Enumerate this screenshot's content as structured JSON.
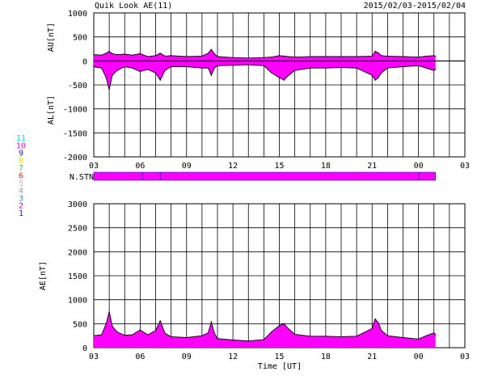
{
  "header": {
    "title": "Quik Look AE(11)",
    "date_range": "2015/02/03-2015/02/04"
  },
  "colors": {
    "fill": "#ff00ff",
    "line": "#000000",
    "grid": "#000000",
    "station_bar": "#ff00ff",
    "station_ticks": "#1a1aa0"
  },
  "station_legend": [
    {
      "label": "11",
      "color": "#00e5e5"
    },
    {
      "label": "10",
      "color": "#ff00ff"
    },
    {
      "label": "9",
      "color": "#2020c0"
    },
    {
      "label": "8",
      "color": "#f0e000"
    },
    {
      "label": "7",
      "color": "#40c040"
    },
    {
      "label": "6",
      "color": "#ff2020"
    },
    {
      "label": "5",
      "color": "#c0c0c0"
    },
    {
      "label": "4",
      "color": "#a0a0a0"
    },
    {
      "label": "3",
      "color": "#20a0a0"
    },
    {
      "label": "2",
      "color": "#c000c0"
    },
    {
      "label": "1",
      "color": "#2020c0"
    }
  ],
  "station_panel": {
    "label": "N.STN",
    "coverage_end_hour": 25.1,
    "tick_hours": [
      6.15,
      7.3,
      24.05
    ]
  },
  "x_tick_labels": [
    "03",
    "06",
    "09",
    "12",
    "15",
    "18",
    "21",
    "00",
    "03"
  ],
  "x_axis_label": "Time [UT]",
  "chart_data": [
    {
      "type": "area",
      "name": "AU/AL panel",
      "ylabel_upper": "AU[nT]",
      "ylabel_lower": "AL[nT]",
      "ylim": [
        -2000,
        1000
      ],
      "yticks": [
        1000,
        500,
        0,
        -500,
        -1000,
        -1500,
        -2000
      ],
      "xlim_hours": [
        3,
        27
      ],
      "grid": true,
      "series": [
        {
          "key": "AU",
          "x_hours": [
            3.0,
            3.5,
            3.8,
            4.0,
            4.2,
            4.5,
            5.0,
            5.5,
            6.0,
            6.5,
            7.0,
            7.3,
            7.6,
            8.0,
            9.0,
            10.0,
            10.4,
            10.6,
            10.8,
            11.0,
            12.0,
            13.0,
            14.0,
            14.5,
            15.0,
            15.3,
            15.6,
            16.0,
            17.0,
            18.0,
            19.0,
            20.0,
            21.0,
            21.2,
            21.4,
            21.6,
            22.0,
            23.0,
            24.0,
            24.5,
            25.0,
            25.1
          ],
          "values": [
            130,
            120,
            160,
            200,
            150,
            130,
            140,
            120,
            150,
            90,
            110,
            160,
            100,
            110,
            90,
            100,
            160,
            240,
            150,
            90,
            70,
            60,
            70,
            80,
            110,
            100,
            90,
            80,
            90,
            90,
            90,
            90,
            100,
            200,
            170,
            110,
            100,
            90,
            80,
            100,
            110,
            100
          ]
        },
        {
          "key": "AL",
          "x_hours": [
            3.0,
            3.5,
            3.8,
            4.0,
            4.2,
            4.5,
            5.0,
            5.5,
            6.0,
            6.5,
            7.0,
            7.3,
            7.6,
            8.0,
            9.0,
            10.0,
            10.4,
            10.6,
            10.8,
            11.0,
            12.0,
            13.0,
            14.0,
            14.5,
            15.0,
            15.3,
            15.6,
            16.0,
            17.0,
            18.0,
            19.0,
            20.0,
            21.0,
            21.2,
            21.4,
            21.6,
            22.0,
            23.0,
            24.0,
            24.5,
            25.0,
            25.1
          ],
          "values": [
            -120,
            -150,
            -350,
            -600,
            -300,
            -200,
            -120,
            -150,
            -220,
            -180,
            -250,
            -400,
            -200,
            -120,
            -120,
            -150,
            -150,
            -300,
            -150,
            -100,
            -90,
            -80,
            -100,
            -250,
            -350,
            -400,
            -300,
            -200,
            -150,
            -150,
            -140,
            -150,
            -300,
            -400,
            -350,
            -250,
            -150,
            -120,
            -100,
            -150,
            -200,
            -170
          ]
        }
      ]
    },
    {
      "type": "area",
      "name": "AE panel",
      "ylabel": "AE[nT]",
      "ylim": [
        0,
        3000
      ],
      "yticks": [
        3000,
        2500,
        2000,
        1500,
        1000,
        500,
        0
      ],
      "xlim_hours": [
        3,
        27
      ],
      "grid": true,
      "series": [
        {
          "key": "AE",
          "x_hours": [
            3.0,
            3.5,
            3.8,
            4.0,
            4.2,
            4.5,
            5.0,
            5.5,
            6.0,
            6.5,
            7.0,
            7.3,
            7.6,
            8.0,
            9.0,
            10.0,
            10.4,
            10.6,
            10.8,
            11.0,
            12.0,
            13.0,
            14.0,
            14.5,
            15.0,
            15.3,
            15.6,
            16.0,
            17.0,
            18.0,
            19.0,
            20.0,
            21.0,
            21.2,
            21.4,
            21.6,
            22.0,
            23.0,
            24.0,
            24.5,
            25.0,
            25.1
          ],
          "values": [
            250,
            270,
            500,
            750,
            450,
            330,
            260,
            270,
            370,
            270,
            360,
            560,
            300,
            230,
            210,
            250,
            310,
            540,
            300,
            190,
            160,
            140,
            170,
            330,
            460,
            500,
            390,
            280,
            240,
            240,
            230,
            240,
            400,
            600,
            520,
            360,
            250,
            210,
            180,
            250,
            310,
            270
          ]
        }
      ]
    }
  ]
}
